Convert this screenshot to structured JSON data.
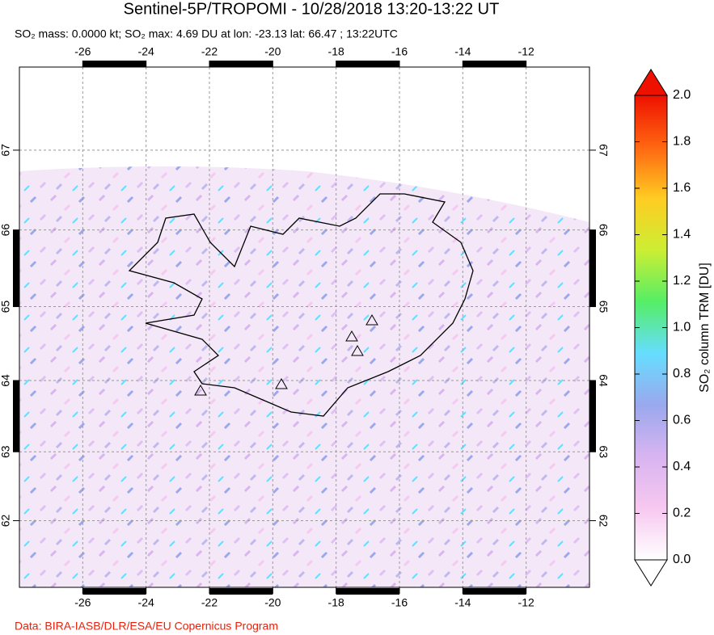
{
  "header": {
    "title": "Sentinel-5P/TROPOMI - 10/28/2018 13:20-13:22 UT",
    "subtitle": "SO₂ mass: 0.0000 kt; SO₂ max: 4.69 DU at lon: -23.13 lat: 66.47 ; 13:22UTC"
  },
  "map": {
    "type": "map",
    "xlim": [
      -28,
      -10
    ],
    "ylim": [
      61,
      68
    ],
    "xticks": [
      -26,
      -24,
      -22,
      -20,
      -18,
      -16,
      -14,
      -12
    ],
    "yticks": [
      62,
      63,
      64,
      65,
      66,
      67
    ],
    "grid": true
  },
  "colorbar": {
    "label": "SO₂ column TRM [DU]",
    "lim": [
      0,
      2
    ],
    "ticks": [
      {
        "value": 0,
        "label": "0.0"
      },
      {
        "value": 0.2,
        "label": "0.2"
      },
      {
        "value": 0.4,
        "label": "0.4"
      },
      {
        "value": 0.6,
        "label": "0.6"
      },
      {
        "value": 0.8,
        "label": "0.8"
      },
      {
        "value": 1,
        "label": "1.0"
      },
      {
        "value": 1.2,
        "label": "1.2"
      },
      {
        "value": 1.4,
        "label": "1.4"
      },
      {
        "value": 1.6,
        "label": "1.6"
      },
      {
        "value": 1.8,
        "label": "1.8"
      },
      {
        "value": 2,
        "label": "2.0"
      }
    ],
    "colors": [
      "#ffffff",
      "#f7c8f0",
      "#d8b4f0",
      "#9aa8ee",
      "#66ddff",
      "#55ee66",
      "#ccee33",
      "#ffcc22",
      "#ff6611",
      "#ee1100"
    ]
  },
  "footer": "Data: BIRA-IASB/DLR/ESA/EU Copernicus Program"
}
